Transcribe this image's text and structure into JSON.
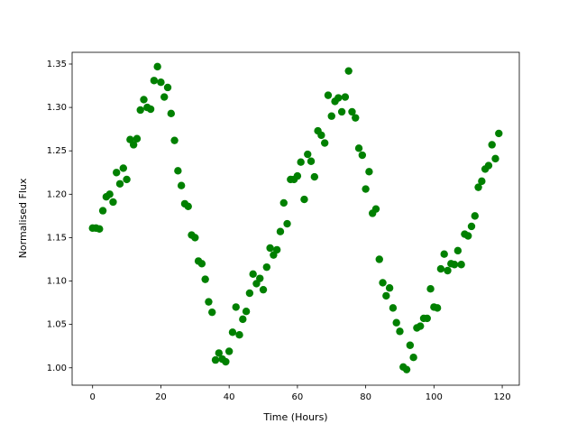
{
  "chart_data": {
    "type": "scatter",
    "x_label": "Time (Hours)",
    "y_label": "Normalised Flux",
    "color": "#008000",
    "xlim": [
      -6,
      125
    ],
    "ylim": [
      0.98,
      1.3635
    ],
    "xticks": [
      0,
      20,
      40,
      60,
      80,
      100,
      120
    ],
    "yticks": [
      {
        "value": 1.0,
        "label": "1.00"
      },
      1.05,
      {
        "value": 1.1,
        "label": "1.10"
      },
      1.15,
      {
        "value": 1.2,
        "label": "1.20"
      },
      1.25,
      {
        "value": 1.3,
        "label": "1.30"
      },
      1.35
    ],
    "x": [
      0,
      1,
      2,
      3,
      4,
      5,
      6,
      7,
      8,
      9,
      10,
      11,
      12,
      13,
      14,
      15,
      16,
      17,
      18,
      19,
      20,
      21,
      22,
      23,
      24,
      25,
      26,
      27,
      28,
      29,
      30,
      31,
      32,
      33,
      34,
      35,
      36,
      37,
      38,
      39,
      40,
      41,
      42,
      43,
      44,
      45,
      46,
      47,
      48,
      49,
      50,
      51,
      52,
      53,
      54,
      55,
      56,
      57,
      58,
      59,
      60,
      61,
      62,
      63,
      64,
      65,
      66,
      67,
      68,
      69,
      70,
      71,
      72,
      73,
      74,
      75,
      76,
      77,
      78,
      79,
      80,
      81,
      82,
      83,
      84,
      85,
      86,
      87,
      88,
      89,
      90,
      91,
      92,
      93,
      94,
      95,
      96,
      97,
      98,
      99,
      100,
      101,
      102,
      103,
      104,
      105,
      106,
      107,
      108,
      109,
      110,
      111,
      112,
      113,
      114,
      115,
      116,
      117,
      118,
      119
    ],
    "values": [
      1.161,
      1.161,
      1.16,
      1.181,
      1.197,
      1.2,
      1.191,
      1.225,
      1.212,
      1.23,
      1.217,
      1.263,
      1.257,
      1.264,
      1.297,
      1.309,
      1.3,
      1.298,
      1.331,
      1.347,
      1.329,
      1.312,
      1.323,
      1.293,
      1.262,
      1.227,
      1.21,
      1.189,
      1.186,
      1.153,
      1.15,
      1.123,
      1.12,
      1.102,
      1.076,
      1.064,
      1.009,
      1.017,
      1.01,
      1.007,
      1.019,
      1.041,
      1.07,
      1.038,
      1.056,
      1.065,
      1.086,
      1.108,
      1.097,
      1.103,
      1.09,
      1.116,
      1.138,
      1.13,
      1.136,
      1.157,
      1.19,
      1.166,
      1.217,
      1.217,
      1.221,
      1.237,
      1.194,
      1.246,
      1.238,
      1.22,
      1.273,
      1.268,
      1.259,
      1.314,
      1.29,
      1.307,
      1.311,
      1.295,
      1.312,
      1.342,
      1.295,
      1.288,
      1.253,
      1.245,
      1.206,
      1.226,
      1.178,
      1.183,
      1.125,
      1.098,
      1.083,
      1.092,
      1.069,
      1.052,
      1.042,
      1.001,
      0.998,
      1.026,
      1.012,
      1.046,
      1.048,
      1.057,
      1.057,
      1.091,
      1.07,
      1.069,
      1.114,
      1.131,
      1.112,
      1.12,
      1.119,
      1.135,
      1.119,
      1.154,
      1.152,
      1.163,
      1.175,
      1.208,
      1.215,
      1.229,
      1.233,
      1.257,
      1.241,
      1.27
    ]
  }
}
